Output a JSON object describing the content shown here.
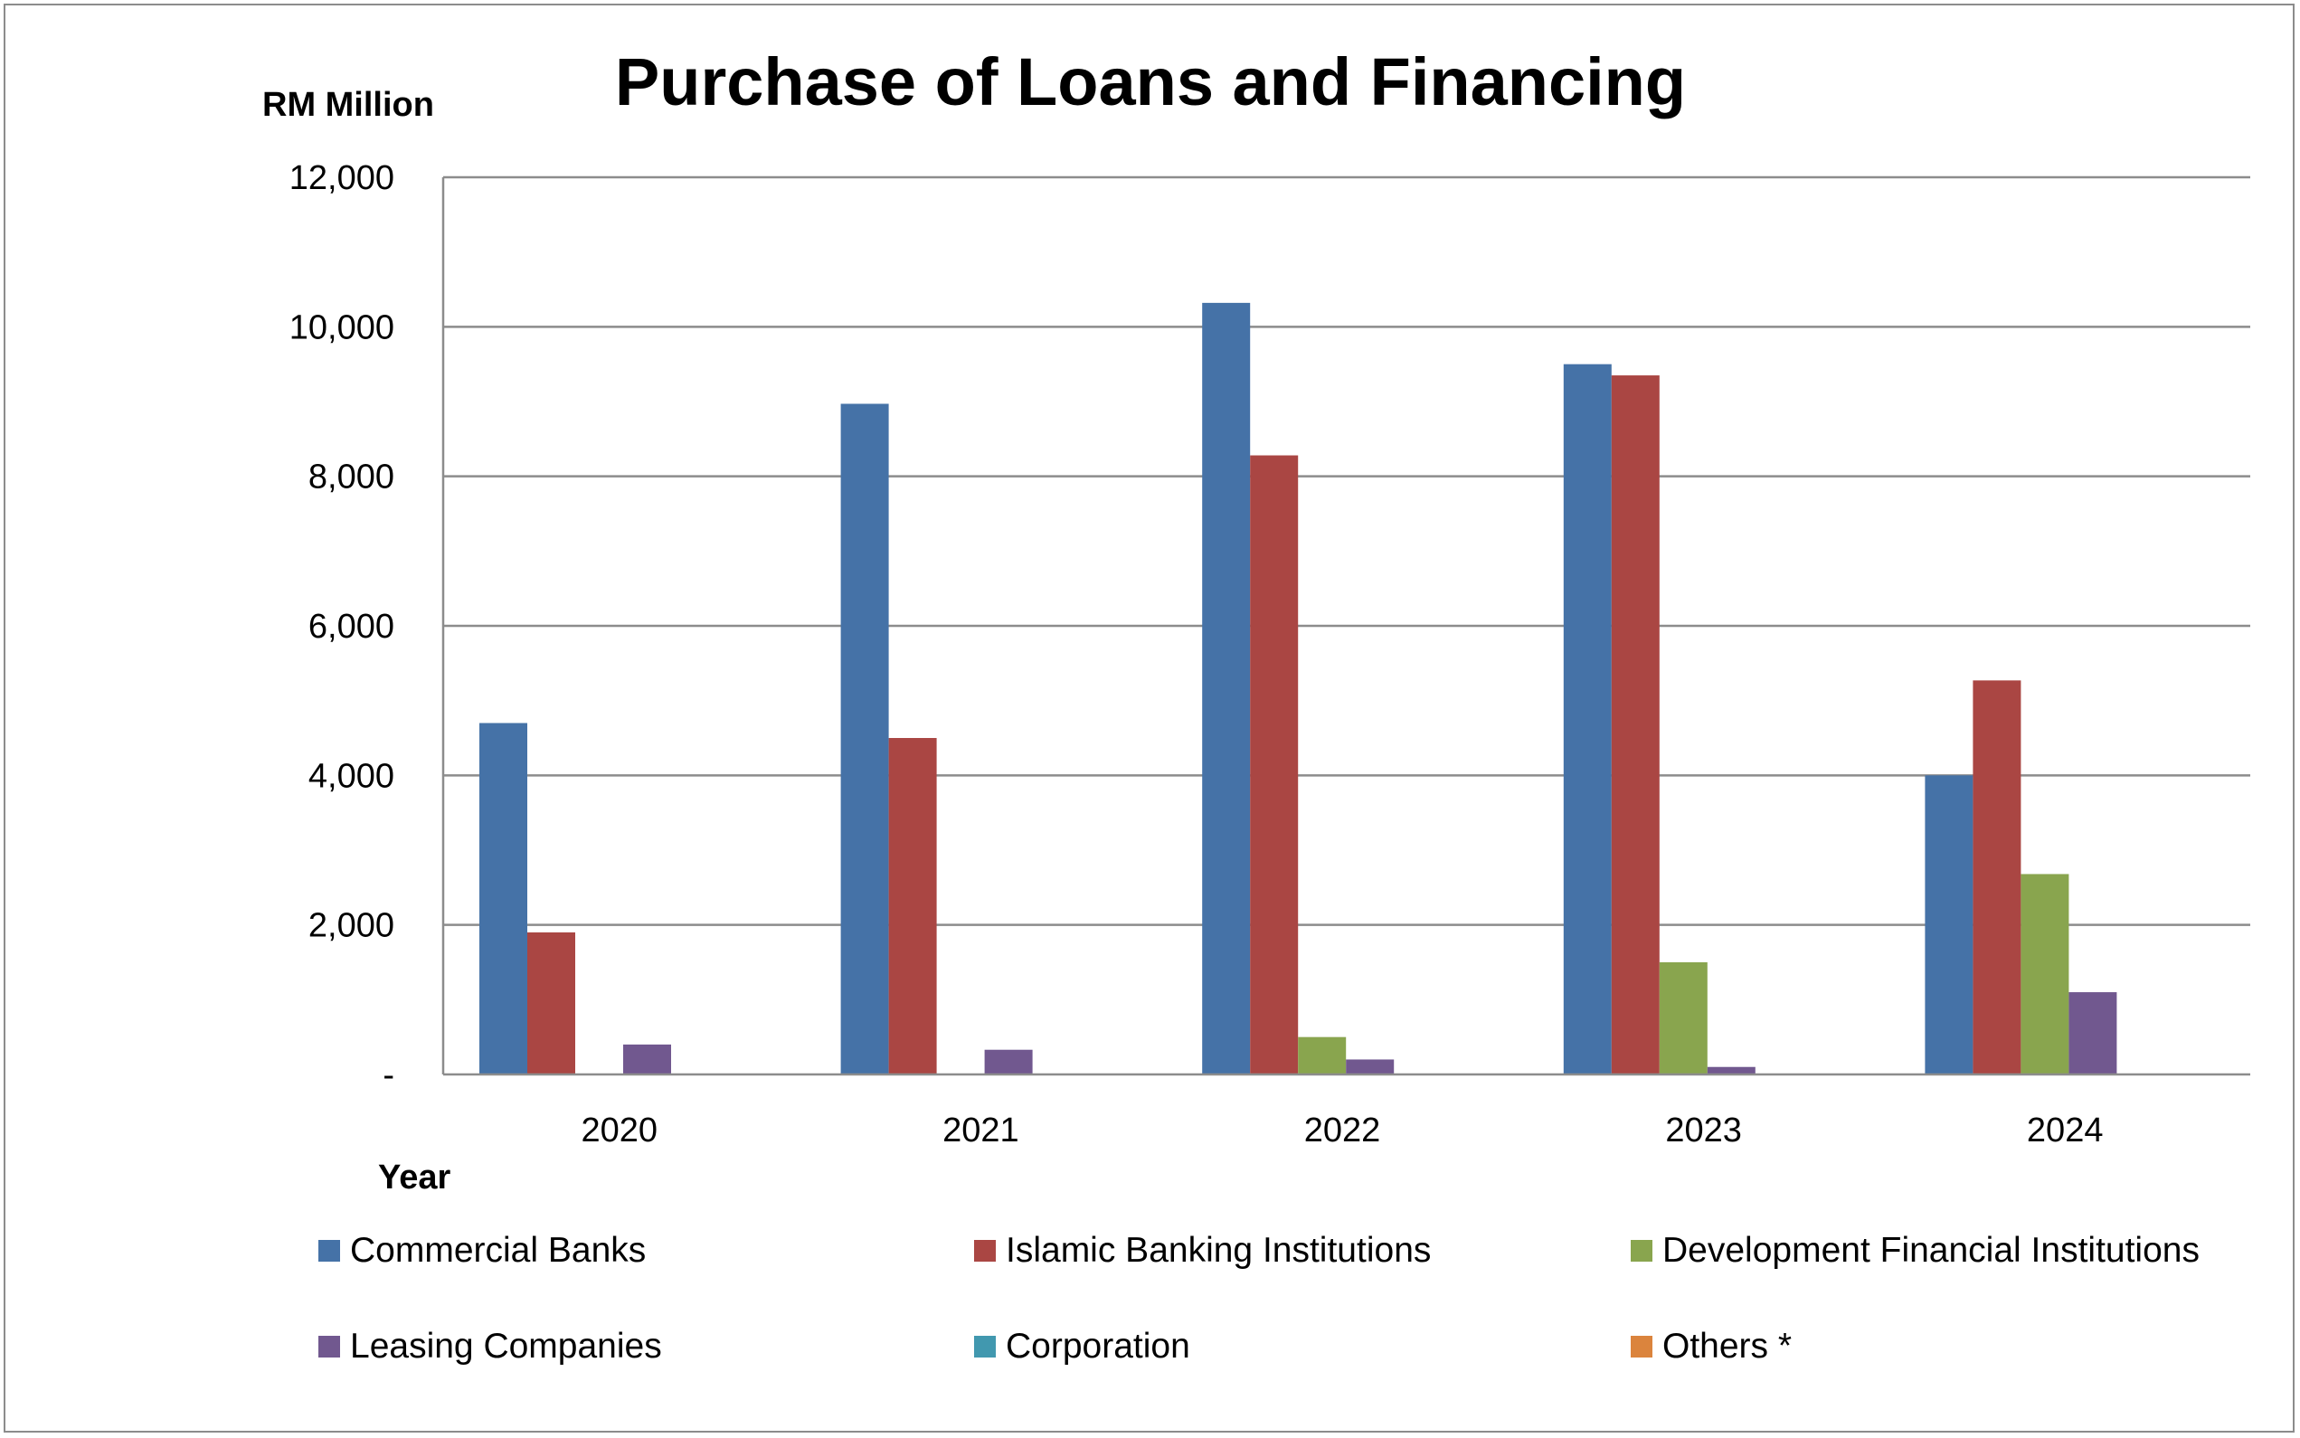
{
  "chart_data": {
    "type": "bar",
    "title": "Purchase of Loans and Financing",
    "ylabel": "RM Million",
    "xlabel": "Year",
    "categories": [
      "2020",
      "2021",
      "2022",
      "2023",
      "2024"
    ],
    "ylim": [
      0,
      12000
    ],
    "yticks": [
      0,
      2000,
      4000,
      6000,
      8000,
      10000,
      12000
    ],
    "ytick_labels": [
      "-",
      "2,000",
      "4,000",
      "6,000",
      "8,000",
      "10,000",
      "12,000"
    ],
    "grid": true,
    "legend": "bottom",
    "series": [
      {
        "name": "Commercial Banks",
        "color": "#4572a7",
        "values": [
          4700,
          8970,
          10320,
          9500,
          4000
        ]
      },
      {
        "name": "Islamic Banking Institutions",
        "color": "#aa4643",
        "values": [
          1900,
          4500,
          8280,
          9350,
          5270
        ]
      },
      {
        "name": "Development Financial Institutions",
        "color": "#89a54e",
        "values": [
          0,
          0,
          500,
          1500,
          2680
        ]
      },
      {
        "name": "Leasing Companies",
        "color": "#71588f",
        "values": [
          400,
          330,
          200,
          100,
          1100
        ]
      },
      {
        "name": "Corporation",
        "color": "#4198af",
        "values": [
          0,
          0,
          0,
          0,
          0
        ]
      },
      {
        "name": "Others *",
        "color": "#db843d",
        "values": [
          0,
          0,
          0,
          0,
          0
        ]
      }
    ]
  }
}
